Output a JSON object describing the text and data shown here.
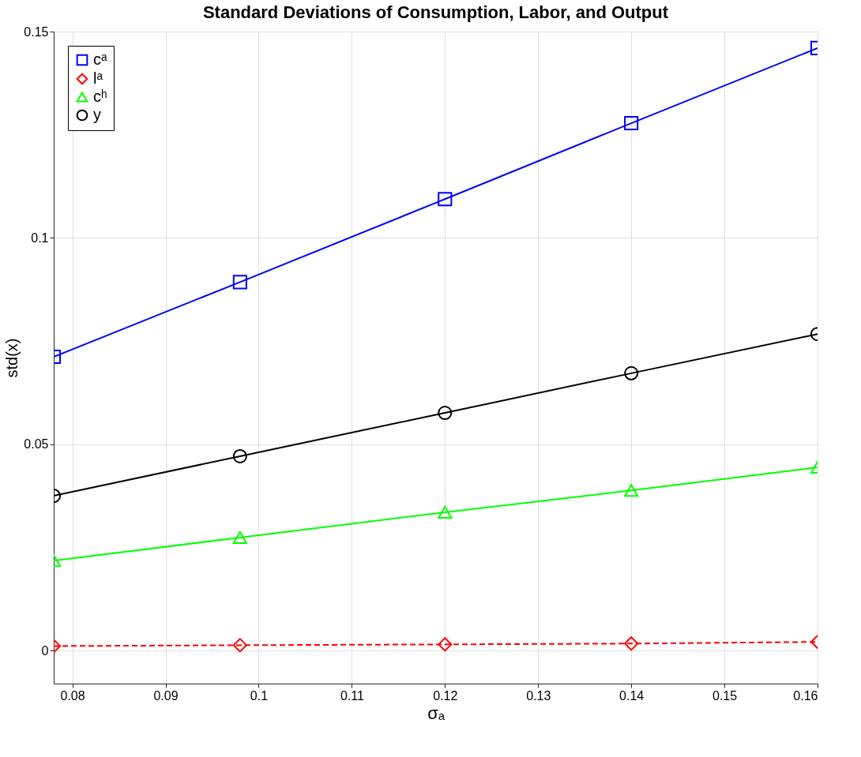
{
  "chart_data": {
    "type": "line",
    "title": "Standard Deviations of Consumption, Labor, and Output",
    "xlabel": "σₐ",
    "ylabel": "std(x)",
    "x": [
      0.078,
      0.098,
      0.12,
      0.14,
      0.16
    ],
    "series": [
      {
        "name": "cᵃ",
        "color": "#0000ff",
        "marker": "square",
        "line_style": "solid",
        "values": [
          0.0712,
          0.0893,
          0.1094,
          0.1278,
          0.146
        ]
      },
      {
        "name": "lᵃ",
        "color": "#ff0000",
        "marker": "diamond",
        "line_style": "dashed",
        "values": [
          0.0011,
          0.0013,
          0.0015,
          0.0017,
          0.0021
        ]
      },
      {
        "name": "cʰ",
        "color": "#00ff00",
        "marker": "triangle",
        "line_style": "solid",
        "values": [
          0.0218,
          0.0274,
          0.0335,
          0.0388,
          0.0444
        ]
      },
      {
        "name": "y",
        "color": "#000000",
        "marker": "circle",
        "line_style": "solid",
        "values": [
          0.0375,
          0.0471,
          0.0576,
          0.0672,
          0.0767
        ]
      }
    ],
    "xlim": [
      0.078,
      0.16
    ],
    "xticks": [
      0.08,
      0.09,
      0.1,
      0.11,
      0.12,
      0.13,
      0.14,
      0.15,
      0.16
    ],
    "ylim": [
      -0.008,
      0.15
    ],
    "yticks": [
      0,
      0.05,
      0.1,
      0.15
    ],
    "grid": true,
    "legend": "top left"
  }
}
